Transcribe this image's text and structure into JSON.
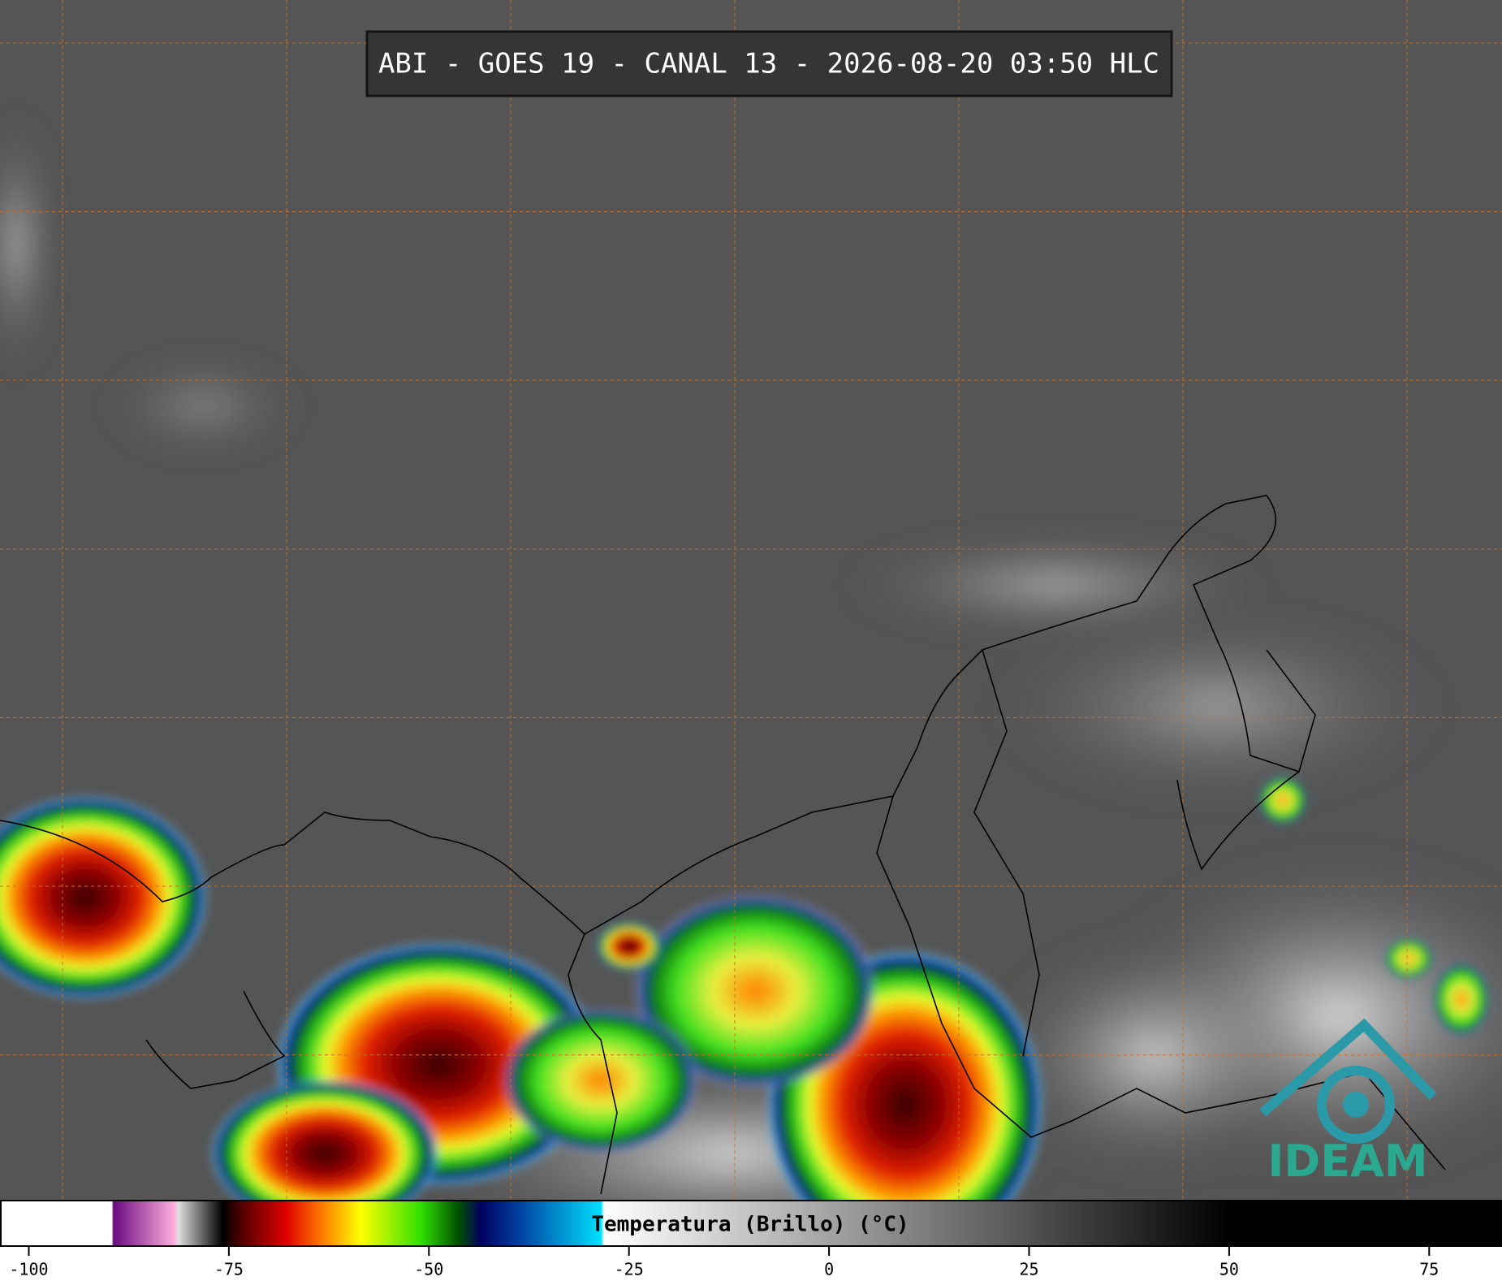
{
  "title": "ABI - GOES 19 - CANAL 13 - 2026-08-20 03:50 HLC",
  "colorbar": {
    "label": "Temperatura (Brillo) (°C)",
    "range": [
      -103.6,
      84.1
    ],
    "ticks": [
      -100,
      -75,
      -50,
      -25,
      0,
      25,
      50,
      75
    ]
  },
  "logo": "IDEAM"
}
